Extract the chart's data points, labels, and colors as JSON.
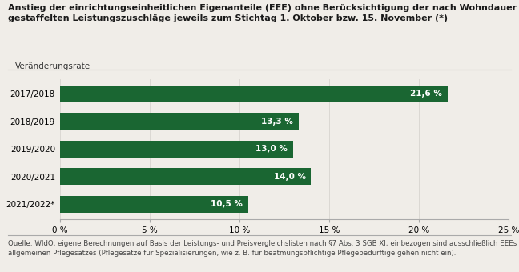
{
  "title_line1": "Anstieg der einrichtungseinheitlichen Eigenanteile (EEE) ohne Berücksichtigung der nach Wohndauer",
  "title_line2": "gestaffelten Leistungszuschläge jeweils zum Stichtag 1. Oktober bzw. 15. November (*)",
  "ylabel_label": "Veränderungsrate",
  "categories": [
    "2021/2022*",
    "2020/2021",
    "2019/2020",
    "2018/2019",
    "2017/2018"
  ],
  "values": [
    21.6,
    13.3,
    13.0,
    14.0,
    10.5
  ],
  "labels": [
    "21,6 %",
    "13,3 %",
    "13,0 %",
    "14,0 %",
    "10,5 %"
  ],
  "bar_color": "#1a6632",
  "xlim": [
    0,
    25
  ],
  "xticks": [
    0,
    5,
    10,
    15,
    20,
    25
  ],
  "xtick_labels": [
    "0 %",
    "5 %",
    "10 %",
    "15 %",
    "20 %",
    "25 %"
  ],
  "footnote": "Quelle: WIdO, eigene Berechnungen auf Basis der Leistungs- und Preisvergleichslisten nach §7 Abs. 3 SGB XI; einbezogen sind ausschließlich EEEs aufgrund des\nallgemeinen Pflegesatzes (Pflegesätze für Spezialisierungen, wie z. B. für beatmungspflichtige Pflegebedürftige gehen nicht ein).",
  "bg_color": "#f0ede8",
  "plot_bg_color": "#f0ede8",
  "title_fontsize": 8.0,
  "tick_fontsize": 7.5,
  "label_fontsize": 7.5,
  "footnote_fontsize": 6.2
}
